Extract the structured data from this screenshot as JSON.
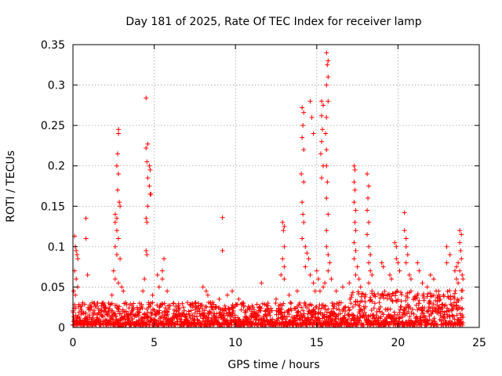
{
  "chart_data": {
    "type": "scatter",
    "title": "Day 181 of 2025, Rate Of TEC Index for receiver lamp",
    "xlabel": "GPS time / hours",
    "ylabel": "ROTI / TECUs",
    "xlim": [
      0,
      25
    ],
    "ylim": [
      0,
      0.35
    ],
    "xticks": [
      0,
      5,
      10,
      15,
      20,
      25
    ],
    "yticks": [
      0,
      0.05,
      0.1,
      0.15,
      0.2,
      0.25,
      0.3,
      0.35
    ],
    "xtick_labels": [
      "0",
      "5",
      "10",
      "15",
      "20",
      "25"
    ],
    "ytick_labels": [
      "0",
      "0.05",
      "0.1",
      "0.15",
      "0.2",
      "0.25",
      "0.3",
      "0.35"
    ],
    "grid": true,
    "marker": "+",
    "marker_color": "#ff0000",
    "data_extent_hours": [
      0,
      24
    ],
    "series": [
      {
        "name": "ROTI",
        "points": [
          [
            0.1,
            0.113
          ],
          [
            0.15,
            0.1
          ],
          [
            0.2,
            0.095
          ],
          [
            0.25,
            0.09
          ],
          [
            0.3,
            0.085
          ],
          [
            0.1,
            0.07
          ],
          [
            0.2,
            0.06
          ],
          [
            0.3,
            0.05
          ],
          [
            0.05,
            0.045
          ],
          [
            0.15,
            0.04
          ],
          [
            0.8,
            0.135
          ],
          [
            0.8,
            0.11
          ],
          [
            0.9,
            0.065
          ],
          [
            1.5,
            0.03
          ],
          [
            2.0,
            0.025
          ],
          [
            2.2,
            0.03
          ],
          [
            2.6,
            0.14
          ],
          [
            2.7,
            0.135
          ],
          [
            2.8,
            0.245
          ],
          [
            2.8,
            0.24
          ],
          [
            2.75,
            0.215
          ],
          [
            2.7,
            0.2
          ],
          [
            2.8,
            0.19
          ],
          [
            2.75,
            0.17
          ],
          [
            2.85,
            0.155
          ],
          [
            2.9,
            0.15
          ],
          [
            2.6,
            0.13
          ],
          [
            2.7,
            0.12
          ],
          [
            2.8,
            0.11
          ],
          [
            2.6,
            0.1
          ],
          [
            2.7,
            0.09
          ],
          [
            2.9,
            0.085
          ],
          [
            2.5,
            0.07
          ],
          [
            2.6,
            0.06
          ],
          [
            2.8,
            0.055
          ],
          [
            3.0,
            0.05
          ],
          [
            3.1,
            0.045
          ],
          [
            2.4,
            0.04
          ],
          [
            4.5,
            0.284
          ],
          [
            4.6,
            0.227
          ],
          [
            4.5,
            0.222
          ],
          [
            4.55,
            0.205
          ],
          [
            4.7,
            0.2
          ],
          [
            4.75,
            0.195
          ],
          [
            4.6,
            0.185
          ],
          [
            4.7,
            0.175
          ],
          [
            4.75,
            0.165
          ],
          [
            4.8,
            0.165
          ],
          [
            4.6,
            0.15
          ],
          [
            4.5,
            0.135
          ],
          [
            4.55,
            0.13
          ],
          [
            4.5,
            0.095
          ],
          [
            4.55,
            0.09
          ],
          [
            4.4,
            0.06
          ],
          [
            4.3,
            0.045
          ],
          [
            4.9,
            0.04
          ],
          [
            5.2,
            0.065
          ],
          [
            5.5,
            0.07
          ],
          [
            5.6,
            0.085
          ],
          [
            5.5,
            0.06
          ],
          [
            5.3,
            0.05
          ],
          [
            5.8,
            0.045
          ],
          [
            6.2,
            0.03
          ],
          [
            6.8,
            0.025
          ],
          [
            7.5,
            0.03
          ],
          [
            8.0,
            0.05
          ],
          [
            8.2,
            0.045
          ],
          [
            8.3,
            0.04
          ],
          [
            8.5,
            0.025
          ],
          [
            9.2,
            0.136
          ],
          [
            9.2,
            0.095
          ],
          [
            9.0,
            0.035
          ],
          [
            9.5,
            0.04
          ],
          [
            9.8,
            0.045
          ],
          [
            10.2,
            0.035
          ],
          [
            10.5,
            0.03
          ],
          [
            11.0,
            0.02
          ],
          [
            11.5,
            0.025
          ],
          [
            11.6,
            0.055
          ],
          [
            12.0,
            0.03
          ],
          [
            12.5,
            0.035
          ],
          [
            12.8,
            0.065
          ],
          [
            12.9,
            0.13
          ],
          [
            13.0,
            0.125
          ],
          [
            12.95,
            0.12
          ],
          [
            13.0,
            0.1
          ],
          [
            12.9,
            0.085
          ],
          [
            13.0,
            0.075
          ],
          [
            13.0,
            0.06
          ],
          [
            13.3,
            0.04
          ],
          [
            13.8,
            0.045
          ],
          [
            14.1,
            0.272
          ],
          [
            14.2,
            0.266
          ],
          [
            14.15,
            0.25
          ],
          [
            14.1,
            0.235
          ],
          [
            14.2,
            0.22
          ],
          [
            14.05,
            0.19
          ],
          [
            14.2,
            0.18
          ],
          [
            14.1,
            0.155
          ],
          [
            14.15,
            0.14
          ],
          [
            14.2,
            0.13
          ],
          [
            14.1,
            0.11
          ],
          [
            14.3,
            0.1
          ],
          [
            14.4,
            0.092
          ],
          [
            14.5,
            0.085
          ],
          [
            14.3,
            0.075
          ],
          [
            14.6,
            0.065
          ],
          [
            14.8,
            0.055
          ],
          [
            14.9,
            0.045
          ],
          [
            14.6,
            0.28
          ],
          [
            14.7,
            0.26
          ],
          [
            14.8,
            0.24
          ],
          [
            15.3,
            0.28
          ],
          [
            15.4,
            0.275
          ],
          [
            15.3,
            0.262
          ],
          [
            15.35,
            0.245
          ],
          [
            15.3,
            0.23
          ],
          [
            15.25,
            0.215
          ],
          [
            15.4,
            0.2
          ],
          [
            15.3,
            0.185
          ],
          [
            15.6,
            0.34
          ],
          [
            15.7,
            0.33
          ],
          [
            15.65,
            0.325
          ],
          [
            15.7,
            0.31
          ],
          [
            15.6,
            0.3
          ],
          [
            15.7,
            0.28
          ],
          [
            15.6,
            0.26
          ],
          [
            15.55,
            0.24
          ],
          [
            15.6,
            0.22
          ],
          [
            15.6,
            0.2
          ],
          [
            15.65,
            0.18
          ],
          [
            15.6,
            0.16
          ],
          [
            15.7,
            0.14
          ],
          [
            15.6,
            0.12
          ],
          [
            15.6,
            0.1
          ],
          [
            15.7,
            0.09
          ],
          [
            15.8,
            0.08
          ],
          [
            15.7,
            0.07
          ],
          [
            15.9,
            0.06
          ],
          [
            15.5,
            0.055
          ],
          [
            15.4,
            0.05
          ],
          [
            15.2,
            0.045
          ],
          [
            15.1,
            0.06
          ],
          [
            15.0,
            0.07
          ],
          [
            16.2,
            0.045
          ],
          [
            16.6,
            0.05
          ],
          [
            17.0,
            0.055
          ],
          [
            17.3,
            0.2
          ],
          [
            17.35,
            0.195
          ],
          [
            17.3,
            0.18
          ],
          [
            17.35,
            0.17
          ],
          [
            17.3,
            0.155
          ],
          [
            17.4,
            0.145
          ],
          [
            17.35,
            0.13
          ],
          [
            17.4,
            0.12
          ],
          [
            17.3,
            0.105
          ],
          [
            17.4,
            0.095
          ],
          [
            17.3,
            0.085
          ],
          [
            17.5,
            0.075
          ],
          [
            17.4,
            0.065
          ],
          [
            17.6,
            0.06
          ],
          [
            17.7,
            0.05
          ],
          [
            18.1,
            0.19
          ],
          [
            18.2,
            0.175
          ],
          [
            18.15,
            0.16
          ],
          [
            18.1,
            0.145
          ],
          [
            18.2,
            0.13
          ],
          [
            18.1,
            0.115
          ],
          [
            18.2,
            0.1
          ],
          [
            18.3,
            0.09
          ],
          [
            18.2,
            0.08
          ],
          [
            18.3,
            0.07
          ],
          [
            18.4,
            0.065
          ],
          [
            18.2,
            0.055
          ],
          [
            18.4,
            0.045
          ],
          [
            19.0,
            0.08
          ],
          [
            19.1,
            0.075
          ],
          [
            19.5,
            0.065
          ],
          [
            19.6,
            0.06
          ],
          [
            19.8,
            0.105
          ],
          [
            19.9,
            0.1
          ],
          [
            19.9,
            0.085
          ],
          [
            20.0,
            0.08
          ],
          [
            20.1,
            0.07
          ],
          [
            20.4,
            0.142
          ],
          [
            20.4,
            0.12
          ],
          [
            20.5,
            0.11
          ],
          [
            20.5,
            0.1
          ],
          [
            20.6,
            0.09
          ],
          [
            20.5,
            0.08
          ],
          [
            20.7,
            0.065
          ],
          [
            20.8,
            0.06
          ],
          [
            21.2,
            0.08
          ],
          [
            21.3,
            0.07
          ],
          [
            21.5,
            0.055
          ],
          [
            21.8,
            0.05
          ],
          [
            22.0,
            0.065
          ],
          [
            22.2,
            0.06
          ],
          [
            22.5,
            0.045
          ],
          [
            22.8,
            0.04
          ],
          [
            23.0,
            0.08
          ],
          [
            23.2,
            0.09
          ],
          [
            23.0,
            0.1
          ],
          [
            23.5,
            0.07
          ],
          [
            23.6,
            0.06
          ],
          [
            23.7,
            0.055
          ],
          [
            23.8,
            0.12
          ],
          [
            23.9,
            0.115
          ],
          [
            23.8,
            0.105
          ],
          [
            23.85,
            0.095
          ],
          [
            23.9,
            0.085
          ],
          [
            23.7,
            0.08
          ],
          [
            23.6,
            0.075
          ],
          [
            23.8,
            0.07
          ],
          [
            23.95,
            0.065
          ],
          [
            24.0,
            0.06
          ]
        ]
      }
    ]
  }
}
